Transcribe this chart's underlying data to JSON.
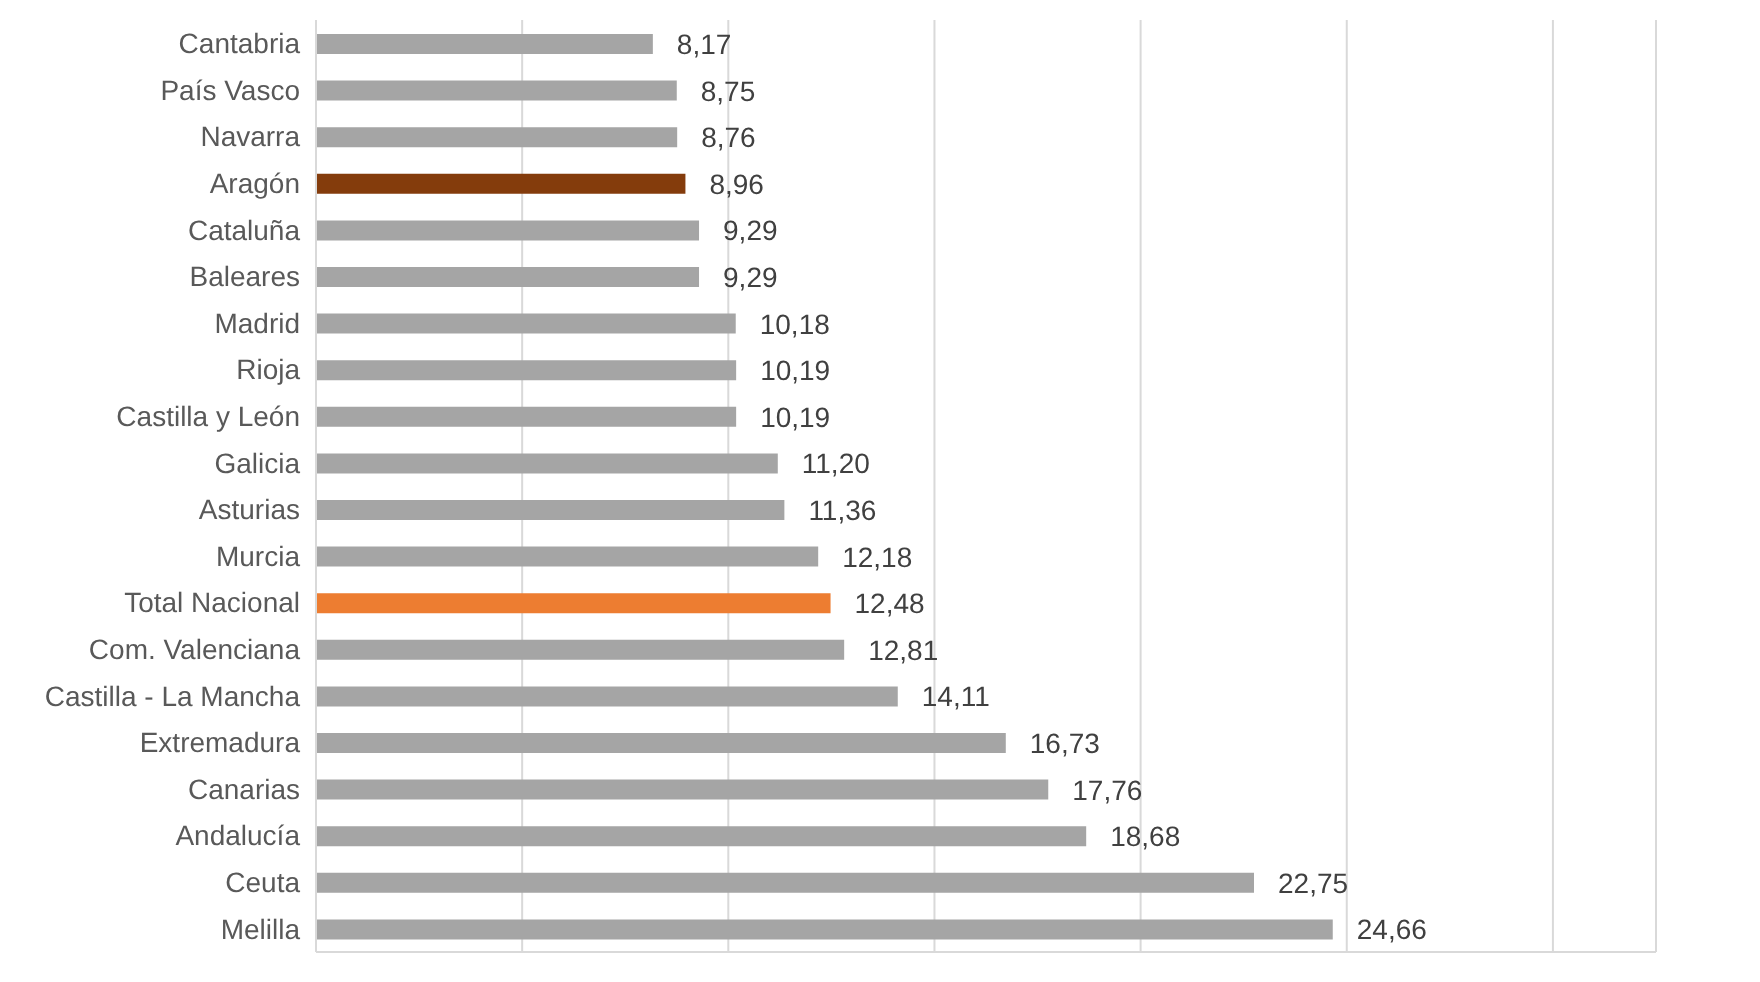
{
  "chart_data": {
    "type": "bar",
    "orientation": "horizontal",
    "categories": [
      "Cantabria",
      "País Vasco",
      "Navarra",
      "Aragón",
      "Cataluña",
      "Baleares",
      "Madrid",
      "Rioja",
      "Castilla y León",
      "Galicia",
      "Asturias",
      "Murcia",
      "Total Nacional",
      "Com. Valenciana",
      "Castilla - La Mancha",
      "Extremadura",
      "Canarias",
      "Andalucía",
      "Ceuta",
      "Melilla"
    ],
    "values": [
      8.17,
      8.75,
      8.76,
      8.96,
      9.29,
      9.29,
      10.18,
      10.19,
      10.19,
      11.2,
      11.36,
      12.18,
      12.48,
      12.81,
      14.11,
      16.73,
      17.76,
      18.68,
      22.75,
      24.66
    ],
    "colors": [
      "#a5a5a5",
      "#a5a5a5",
      "#a5a5a5",
      "#843c0c",
      "#a5a5a5",
      "#a5a5a5",
      "#a5a5a5",
      "#a5a5a5",
      "#a5a5a5",
      "#a5a5a5",
      "#a5a5a5",
      "#a5a5a5",
      "#ed7d31",
      "#a5a5a5",
      "#a5a5a5",
      "#a5a5a5",
      "#a5a5a5",
      "#a5a5a5",
      "#a5a5a5",
      "#a5a5a5"
    ],
    "value_labels": [
      "8,17",
      "8,75",
      "8,76",
      "8,96",
      "9,29",
      "9,29",
      "10,18",
      "10,19",
      "10,19",
      "11,20",
      "11,36",
      "12,18",
      "12,48",
      "12,81",
      "14,11",
      "16,73",
      "17,76",
      "18,68",
      "22,75",
      "24,66"
    ],
    "xlim": [
      0,
      32.5
    ],
    "xticks": [
      {
        "value": 0,
        "label": null
      },
      {
        "value": 5,
        "label": null
      },
      {
        "value": 10,
        "label": null
      },
      {
        "value": 15,
        "label": null
      },
      {
        "value": 20,
        "label": null
      },
      {
        "value": 25,
        "label": null
      },
      {
        "value": 30,
        "label": null
      }
    ],
    "grid": "x",
    "tick_labels": "y"
  }
}
